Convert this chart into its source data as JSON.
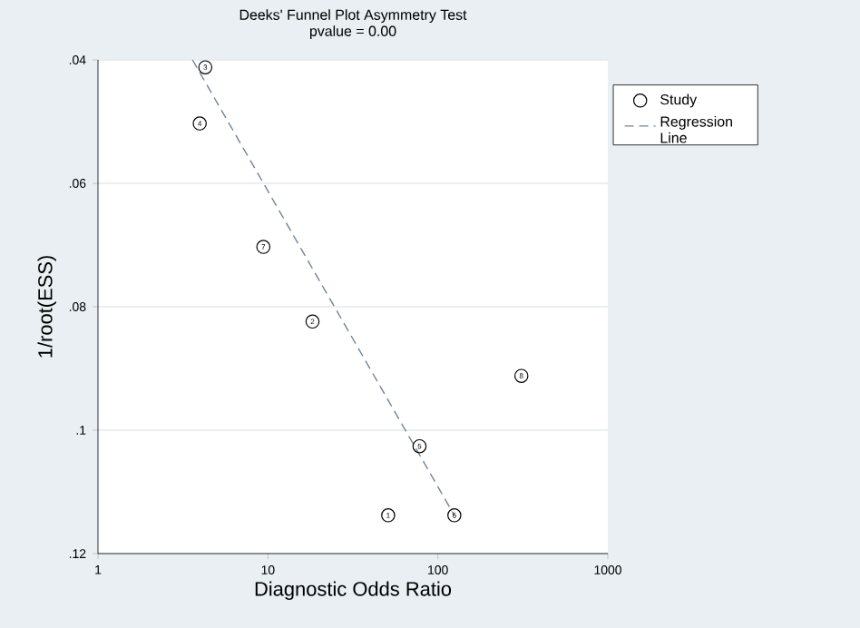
{
  "chart_data": {
    "type": "scatter",
    "title": "Deeks' Funnel Plot Asymmetry Test",
    "subtitle": "pvalue =   0.00",
    "xlabel": "Diagnostic Odds Ratio",
    "ylabel": "1/root(ESS)",
    "log": "x",
    "xlim": [
      1,
      1000
    ],
    "xticks": [
      1,
      10,
      100,
      1000
    ],
    "ylim": [
      0.12,
      0.04
    ],
    "yticks": [
      {
        "value": 0.04,
        "label": ".04"
      },
      {
        "value": 0.06,
        "label": ".06"
      },
      {
        "value": 0.08,
        "label": ".08"
      },
      {
        "value": 0.1,
        "label": ".1"
      },
      {
        "value": 0.12,
        "label": ".12"
      }
    ],
    "grid": "y",
    "legend": "top right",
    "series": [
      {
        "name": "Study",
        "marker": "circle",
        "color": "#000000",
        "x": [
          51,
          18.3,
          4.28,
          3.97,
          78,
          125,
          9.4,
          310
        ],
        "values": [
          0.1138,
          0.0824,
          0.0412,
          0.0503,
          0.1026,
          0.1138,
          0.0703,
          0.0912
        ]
      },
      {
        "name": "Regression Line",
        "type": "line",
        "line_style": "dashed",
        "color": "#6f8397",
        "x": [
          3.6,
          125
        ],
        "values": [
          0.04,
          0.1138
        ]
      }
    ],
    "annotations": [
      {
        "text": "1",
        "x": 51,
        "y": 0.1138
      },
      {
        "text": "2",
        "x": 18.3,
        "y": 0.0824
      },
      {
        "text": "3",
        "x": 4.28,
        "y": 0.0412
      },
      {
        "text": "4",
        "x": 3.97,
        "y": 0.0503
      },
      {
        "text": "5",
        "x": 78,
        "y": 0.1026
      },
      {
        "text": "6",
        "x": 125,
        "y": 0.1138
      },
      {
        "text": "7",
        "x": 9.4,
        "y": 0.0703
      },
      {
        "text": "8",
        "x": 310,
        "y": 0.0912
      }
    ]
  }
}
